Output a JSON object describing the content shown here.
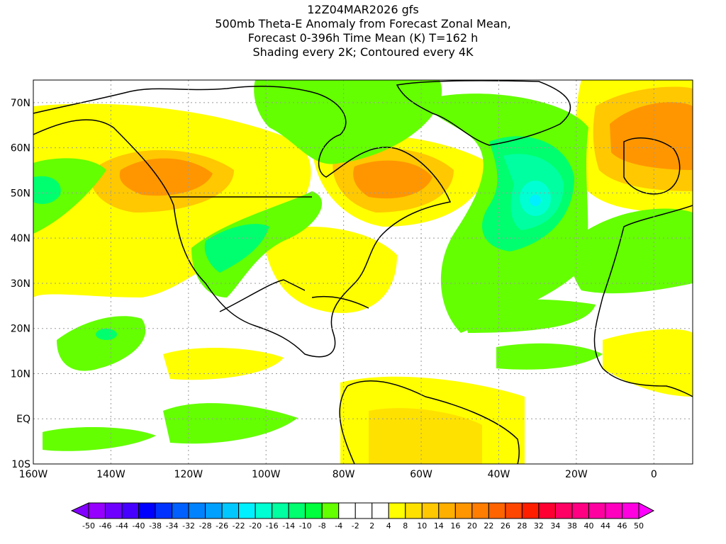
{
  "title": {
    "line1": "12Z04MAR2026 gfs",
    "line2": "500mb Theta-E Anomaly from Forecast Zonal Mean,",
    "line3": "Forecast 0-396h Time Mean (K) T=162 h",
    "line4": "Shading every 2K; Contoured every 4K"
  },
  "map": {
    "lon_labels": [
      "160W",
      "140W",
      "120W",
      "100W",
      "80W",
      "60W",
      "40W",
      "20W",
      "0"
    ],
    "lat_labels": [
      "70N",
      "60N",
      "50N",
      "40N",
      "30N",
      "20N",
      "10N",
      "EQ",
      "10S"
    ],
    "lon_values": [
      -160,
      -140,
      -120,
      -100,
      -80,
      -60,
      -40,
      -20,
      0
    ],
    "lat_values": [
      70,
      60,
      50,
      40,
      30,
      20,
      10,
      0,
      -10
    ],
    "extent": {
      "lon": [
        -160,
        10
      ],
      "lat": [
        -10,
        75
      ]
    }
  },
  "colorbar": {
    "labels": [
      "-50",
      "-46",
      "-44",
      "-40",
      "-38",
      "-34",
      "-32",
      "-28",
      "-26",
      "-22",
      "-20",
      "-16",
      "-14",
      "-10",
      "-8",
      "-4",
      "-2",
      "2",
      "4",
      "8",
      "10",
      "14",
      "16",
      "20",
      "22",
      "26",
      "28",
      "32",
      "34",
      "38",
      "40",
      "44",
      "46",
      "50"
    ],
    "colors": [
      "#9600ff",
      "#6e00ff",
      "#4600ff",
      "#0000ff",
      "#0032ff",
      "#0060ff",
      "#0082ff",
      "#00a0ff",
      "#00c8ff",
      "#00f0ff",
      "#00ffd2",
      "#00ffa0",
      "#00ff6e",
      "#00ff3c",
      "#64ff00",
      "#ffffff",
      "#ffffff",
      "#ffffff",
      "#ffff00",
      "#ffe100",
      "#ffc800",
      "#ffaf00",
      "#ff9600",
      "#ff7d00",
      "#ff6400",
      "#ff4600",
      "#ff1e00",
      "#ff0032",
      "#ff0064",
      "#ff0082",
      "#ff00a0",
      "#ff00be",
      "#ff00e1"
    ],
    "under_color": "#8200ff",
    "over_color": "#ff00ff"
  }
}
